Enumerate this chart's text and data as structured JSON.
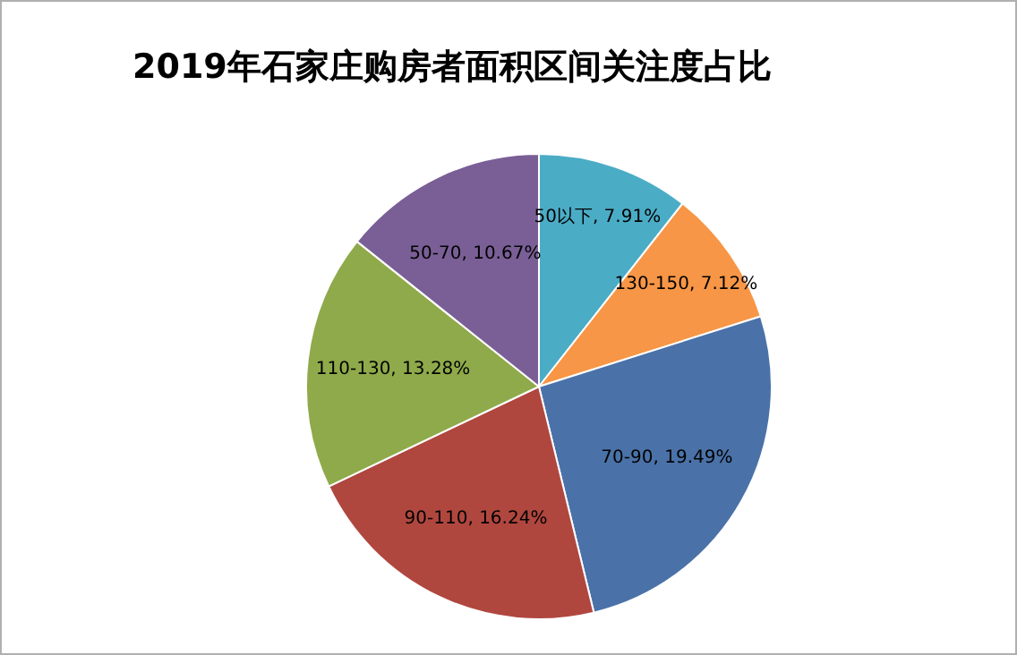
{
  "chart_data": {
    "type": "pie",
    "title": "2019年石家庄购房者面积区间关注度占比",
    "categories": [
      "50以下",
      "130-150",
      "70-90",
      "90-110",
      "110-130",
      "50-70"
    ],
    "values": [
      7.91,
      7.12,
      19.49,
      16.24,
      13.28,
      10.67
    ],
    "value_labels": [
      "7.91%",
      "7.12%",
      "19.49%",
      "16.24%",
      "13.28%",
      "10.67%"
    ],
    "colors": [
      "#4bacc6",
      "#f79646",
      "#4a72a8",
      "#b0473f",
      "#8faa4a",
      "#7a5f96"
    ],
    "legend": false
  }
}
